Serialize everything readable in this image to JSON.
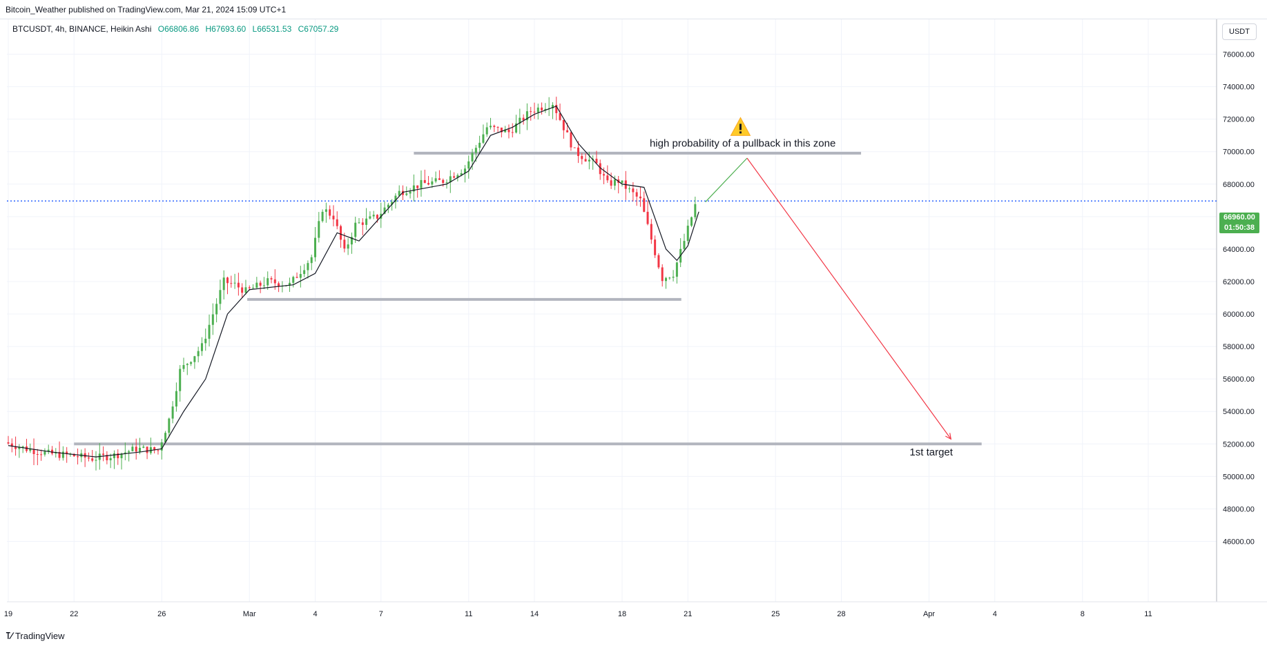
{
  "header": {
    "published": "Bitcoin_Weather published on TradingView.com, Mar 21, 2024 15:09 UTC+1"
  },
  "legend": {
    "symbol": "BTCUSDT, 4h, BINANCE, Heikin Ashi",
    "open": "O66806.86",
    "high": "H67693.60",
    "low": "L66531.53",
    "close": "C67057.29"
  },
  "currency_button": "USDT",
  "last_price": {
    "price": "66960.00",
    "countdown": "01:50:38"
  },
  "footer": {
    "brand": "TradingView"
  },
  "colors": {
    "up": "#4caf50",
    "down": "#f23645",
    "level": "#b2b5be",
    "price_line": "#2962ff",
    "arrow_up": "#4caf50",
    "arrow_down": "#f23645"
  },
  "chart_data": {
    "type": "candlestick",
    "subtype": "Heikin Ashi",
    "ylim": [
      45000,
      77500
    ],
    "y_ticks": [
      "46000.00",
      "48000.00",
      "50000.00",
      "52000.00",
      "54000.00",
      "56000.00",
      "58000.00",
      "60000.00",
      "62000.00",
      "64000.00",
      "66000.00",
      "68000.00",
      "70000.00",
      "72000.00",
      "74000.00",
      "76000.00"
    ],
    "x_ticks": [
      {
        "label": "19",
        "day": 0
      },
      {
        "label": "22",
        "day": 3
      },
      {
        "label": "26",
        "day": 7
      },
      {
        "label": "Mar",
        "day": 11
      },
      {
        "label": "4",
        "day": 14
      },
      {
        "label": "7",
        "day": 17
      },
      {
        "label": "11",
        "day": 21
      },
      {
        "label": "14",
        "day": 24
      },
      {
        "label": "18",
        "day": 28
      },
      {
        "label": "21",
        "day": 31
      },
      {
        "label": "25",
        "day": 35
      },
      {
        "label": "28",
        "day": 38
      },
      {
        "label": "Apr",
        "day": 42
      },
      {
        "label": "4",
        "day": 45
      },
      {
        "label": "8",
        "day": 49
      },
      {
        "label": "11",
        "day": 52
      }
    ],
    "price_path": [
      [
        0,
        52100
      ],
      [
        1,
        51700
      ],
      [
        2,
        51400
      ],
      [
        3,
        51300
      ],
      [
        4,
        51100
      ],
      [
        5,
        51300
      ],
      [
        6,
        51700
      ],
      [
        7,
        51600
      ],
      [
        7.5,
        53500
      ],
      [
        8,
        56500
      ],
      [
        9,
        58000
      ],
      [
        10,
        62000
      ],
      [
        10.5,
        61800
      ],
      [
        11,
        61400
      ],
      [
        12,
        62000
      ],
      [
        13,
        61800
      ],
      [
        14,
        63500
      ],
      [
        14.5,
        66500
      ],
      [
        15,
        66000
      ],
      [
        15.5,
        63800
      ],
      [
        16,
        65500
      ],
      [
        17,
        66000
      ],
      [
        18,
        67500
      ],
      [
        19,
        68000
      ],
      [
        20,
        68200
      ],
      [
        21,
        69000
      ],
      [
        22,
        71500
      ],
      [
        23,
        71200
      ],
      [
        24,
        72500
      ],
      [
        25,
        73000
      ],
      [
        26,
        70000
      ],
      [
        27,
        69200
      ],
      [
        27.5,
        68000
      ],
      [
        28,
        68200
      ],
      [
        29,
        67000
      ],
      [
        30,
        62200
      ],
      [
        30.5,
        62500
      ],
      [
        31,
        64500
      ],
      [
        31.5,
        66700
      ]
    ],
    "ma_path": [
      [
        0,
        51900
      ],
      [
        2,
        51500
      ],
      [
        4,
        51200
      ],
      [
        6,
        51500
      ],
      [
        7,
        51700
      ],
      [
        8,
        54000
      ],
      [
        9,
        56000
      ],
      [
        10,
        60000
      ],
      [
        11,
        61500
      ],
      [
        13,
        61800
      ],
      [
        14,
        62500
      ],
      [
        15,
        65000
      ],
      [
        16,
        64500
      ],
      [
        17,
        66000
      ],
      [
        18,
        67500
      ],
      [
        20,
        68000
      ],
      [
        21,
        68800
      ],
      [
        22,
        71000
      ],
      [
        23,
        71500
      ],
      [
        24,
        72300
      ],
      [
        25,
        72800
      ],
      [
        26,
        70500
      ],
      [
        27,
        69000
      ],
      [
        28,
        68000
      ],
      [
        29,
        67800
      ],
      [
        30,
        64000
      ],
      [
        30.5,
        63300
      ],
      [
        31,
        64200
      ],
      [
        31.5,
        66300
      ]
    ],
    "levels": [
      {
        "price": 69900,
        "from_day": 18.5,
        "to_day": 38.9
      },
      {
        "price": 60900,
        "from_day": 10.9,
        "to_day": 30.7
      },
      {
        "price": 52000,
        "from_day": 3.0,
        "to_day": 44.4
      }
    ],
    "current_price": 66960,
    "projection": [
      {
        "from": [
          31.8,
          66900
        ],
        "to": [
          33.7,
          69600
        ],
        "color": "green"
      },
      {
        "from": [
          33.7,
          69600
        ],
        "to": [
          43.0,
          52300
        ],
        "color": "red"
      }
    ],
    "annotations": [
      {
        "text": "high probability of a pullback in this zone",
        "day": 33.5,
        "price": 70300
      },
      {
        "text": "1st target",
        "day": 42.1,
        "price": 51300
      }
    ],
    "warning_icon": {
      "name": "warning-icon",
      "day": 33.4,
      "price": 71500
    }
  }
}
